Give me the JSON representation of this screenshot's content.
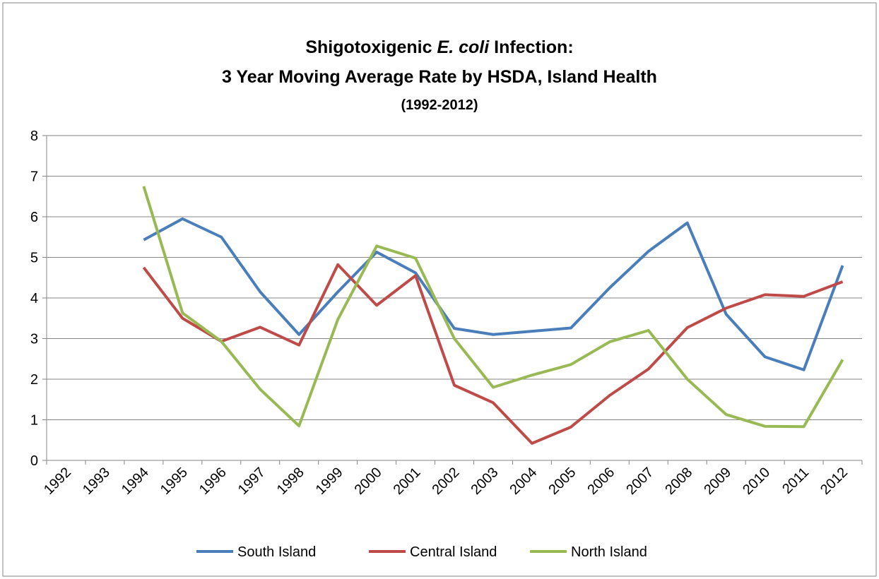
{
  "chart_data": {
    "type": "line",
    "title": {
      "line1": [
        "Shigotoxigenic",
        "E. coli",
        "Infection:"
      ],
      "line2": "3 Year Moving Average Rate by HSDA, Island Health",
      "subtitle": "(1992-2012)"
    },
    "categories": [
      "1992",
      "1993",
      "1994",
      "1995",
      "1996",
      "1997",
      "1998",
      "1999",
      "2000",
      "2001",
      "2002",
      "2003",
      "2004",
      "2005",
      "2006",
      "2007",
      "2008",
      "2009",
      "2010",
      "2011",
      "2012"
    ],
    "series": [
      {
        "name": "South Island",
        "color": "#4a7ebb",
        "values": [
          null,
          null,
          5.43,
          5.95,
          5.5,
          4.15,
          3.1,
          4.15,
          5.13,
          4.62,
          3.25,
          3.1,
          3.18,
          3.26,
          4.25,
          5.15,
          5.85,
          3.6,
          2.55,
          2.23,
          4.8
        ]
      },
      {
        "name": "Central Island",
        "color": "#be4b48",
        "values": [
          null,
          null,
          4.75,
          3.5,
          2.93,
          3.28,
          2.84,
          4.82,
          3.82,
          4.55,
          1.85,
          1.42,
          0.42,
          0.82,
          1.6,
          2.25,
          3.27,
          3.75,
          4.08,
          4.04,
          4.4
        ]
      },
      {
        "name": "North Island",
        "color": "#98b954",
        "values": [
          null,
          null,
          6.75,
          3.63,
          2.93,
          1.75,
          0.85,
          3.47,
          5.28,
          4.98,
          3.0,
          1.8,
          2.1,
          2.36,
          2.92,
          3.2,
          2.0,
          1.13,
          0.84,
          0.83,
          2.48
        ]
      }
    ],
    "ylim": [
      0,
      8
    ],
    "yticks": [
      0,
      1,
      2,
      3,
      4,
      5,
      6,
      7,
      8
    ],
    "grid": true,
    "legend": "bottom"
  }
}
